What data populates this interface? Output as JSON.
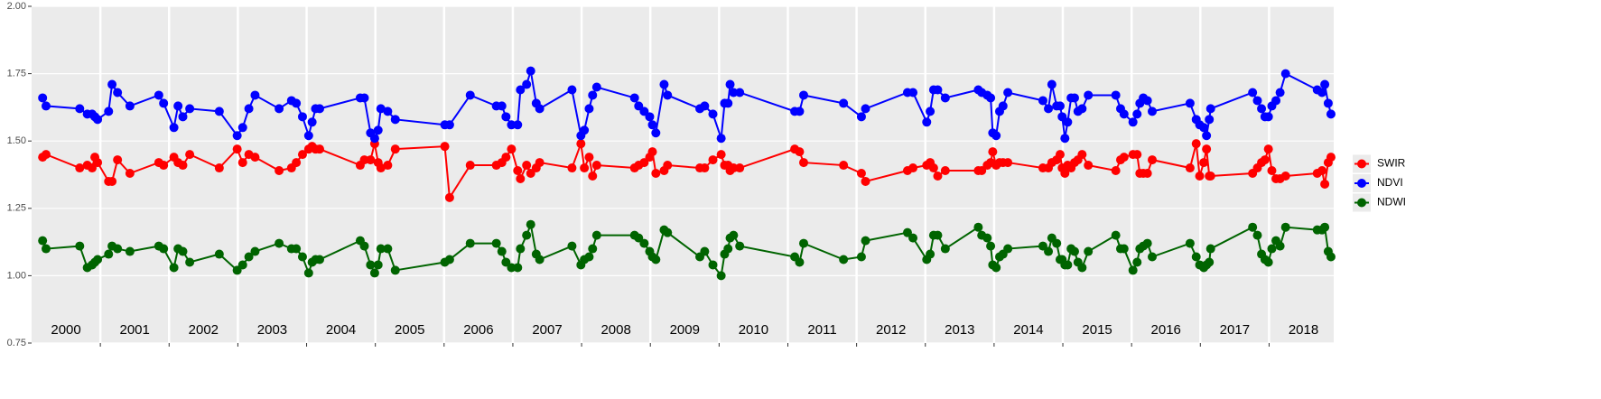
{
  "chart_data": {
    "type": "line",
    "x": [
      2000.16,
      2000.21,
      2000.7,
      2000.81,
      2000.88,
      2000.92,
      2000.96,
      2001.12,
      2001.17,
      2001.25,
      2001.43,
      2001.85,
      2001.92,
      2002.07,
      2002.13,
      2002.2,
      2002.3,
      2002.73,
      2002.99,
      2003.07,
      2003.16,
      2003.25,
      2003.6,
      2003.78,
      2003.85,
      2003.94,
      2004.03,
      2004.08,
      2004.13,
      2004.19,
      2004.78,
      2004.84,
      2004.93,
      2004.99,
      2005.04,
      2005.08,
      2005.18,
      2005.29,
      2006.01,
      2006.08,
      2006.38,
      2006.76,
      2006.84,
      2006.9,
      2006.98,
      2007.07,
      2007.11,
      2007.2,
      2007.26,
      2007.34,
      2007.39,
      2007.86,
      2007.99,
      2008.04,
      2008.11,
      2008.16,
      2008.22,
      2008.77,
      2008.83,
      2008.91,
      2008.99,
      2009.03,
      2009.08,
      2009.2,
      2009.25,
      2009.72,
      2009.79,
      2009.91,
      2010.03,
      2010.08,
      2010.13,
      2010.16,
      2010.21,
      2010.3,
      2011.1,
      2011.17,
      2011.23,
      2011.81,
      2012.07,
      2012.13,
      2012.74,
      2012.82,
      2013.02,
      2013.07,
      2013.12,
      2013.18,
      2013.29,
      2013.77,
      2013.82,
      2013.9,
      2013.95,
      2013.98,
      2014.03,
      2014.08,
      2014.13,
      2014.2,
      2014.71,
      2014.79,
      2014.84,
      2014.91,
      2014.96,
      2014.99,
      2015.03,
      2015.07,
      2015.12,
      2015.17,
      2015.22,
      2015.28,
      2015.37,
      2015.77,
      2015.84,
      2015.89,
      2016.02,
      2016.08,
      2016.12,
      2016.17,
      2016.23,
      2016.3,
      2016.85,
      2016.94,
      2016.99,
      2017.05,
      2017.09,
      2017.13,
      2017.15,
      2017.76,
      2017.83,
      2017.89,
      2017.94,
      2017.99,
      2018.04,
      2018.1,
      2018.16,
      2018.24,
      2018.7,
      2018.77,
      2018.81,
      2018.86,
      2018.9
    ],
    "series": [
      {
        "name": "SWIR",
        "color": "#ff0000",
        "values": [
          1.44,
          1.45,
          1.4,
          1.41,
          1.4,
          1.44,
          1.42,
          1.35,
          1.35,
          1.43,
          1.38,
          1.42,
          1.41,
          1.44,
          1.42,
          1.41,
          1.45,
          1.4,
          1.47,
          1.42,
          1.45,
          1.44,
          1.39,
          1.4,
          1.42,
          1.45,
          1.47,
          1.48,
          1.47,
          1.47,
          1.41,
          1.43,
          1.43,
          1.49,
          1.42,
          1.4,
          1.41,
          1.47,
          1.48,
          1.29,
          1.41,
          1.41,
          1.42,
          1.44,
          1.47,
          1.39,
          1.36,
          1.41,
          1.38,
          1.4,
          1.42,
          1.4,
          1.49,
          1.4,
          1.44,
          1.37,
          1.41,
          1.4,
          1.41,
          1.42,
          1.44,
          1.46,
          1.38,
          1.39,
          1.41,
          1.4,
          1.4,
          1.43,
          1.45,
          1.41,
          1.41,
          1.39,
          1.4,
          1.4,
          1.47,
          1.46,
          1.42,
          1.41,
          1.38,
          1.35,
          1.39,
          1.4,
          1.41,
          1.42,
          1.4,
          1.37,
          1.39,
          1.39,
          1.39,
          1.41,
          1.42,
          1.46,
          1.41,
          1.42,
          1.42,
          1.42,
          1.4,
          1.4,
          1.42,
          1.43,
          1.45,
          1.4,
          1.38,
          1.41,
          1.4,
          1.42,
          1.43,
          1.45,
          1.41,
          1.39,
          1.43,
          1.44,
          1.45,
          1.45,
          1.38,
          1.38,
          1.38,
          1.43,
          1.4,
          1.49,
          1.37,
          1.42,
          1.47,
          1.37,
          1.37,
          1.38,
          1.4,
          1.42,
          1.43,
          1.47,
          1.39,
          1.36,
          1.36,
          1.37,
          1.38,
          1.39,
          1.34,
          1.42,
          1.44
        ]
      },
      {
        "name": "NDVI",
        "color": "#0000ff",
        "values": [
          1.66,
          1.63,
          1.62,
          1.6,
          1.6,
          1.59,
          1.58,
          1.61,
          1.71,
          1.68,
          1.63,
          1.67,
          1.64,
          1.55,
          1.63,
          1.59,
          1.62,
          1.61,
          1.52,
          1.55,
          1.62,
          1.67,
          1.62,
          1.65,
          1.64,
          1.59,
          1.52,
          1.57,
          1.62,
          1.62,
          1.66,
          1.66,
          1.53,
          1.51,
          1.54,
          1.62,
          1.61,
          1.58,
          1.56,
          1.56,
          1.67,
          1.63,
          1.63,
          1.59,
          1.56,
          1.56,
          1.69,
          1.71,
          1.76,
          1.64,
          1.62,
          1.69,
          1.52,
          1.54,
          1.62,
          1.67,
          1.7,
          1.66,
          1.63,
          1.61,
          1.59,
          1.56,
          1.53,
          1.71,
          1.67,
          1.62,
          1.63,
          1.6,
          1.51,
          1.64,
          1.64,
          1.71,
          1.68,
          1.68,
          1.61,
          1.61,
          1.67,
          1.64,
          1.59,
          1.62,
          1.68,
          1.68,
          1.57,
          1.61,
          1.69,
          1.69,
          1.66,
          1.69,
          1.68,
          1.67,
          1.66,
          1.53,
          1.52,
          1.61,
          1.63,
          1.68,
          1.65,
          1.62,
          1.71,
          1.63,
          1.63,
          1.59,
          1.51,
          1.57,
          1.66,
          1.66,
          1.61,
          1.62,
          1.67,
          1.67,
          1.62,
          1.6,
          1.57,
          1.6,
          1.64,
          1.66,
          1.65,
          1.61,
          1.64,
          1.58,
          1.56,
          1.55,
          1.52,
          1.58,
          1.62,
          1.68,
          1.65,
          1.62,
          1.59,
          1.59,
          1.63,
          1.65,
          1.68,
          1.75,
          1.69,
          1.68,
          1.71,
          1.64,
          1.6
        ]
      },
      {
        "name": "NDWI",
        "color": "#006400",
        "values": [
          1.13,
          1.1,
          1.11,
          1.03,
          1.04,
          1.05,
          1.06,
          1.08,
          1.11,
          1.1,
          1.09,
          1.11,
          1.1,
          1.03,
          1.1,
          1.09,
          1.05,
          1.08,
          1.02,
          1.04,
          1.07,
          1.09,
          1.12,
          1.1,
          1.1,
          1.07,
          1.01,
          1.05,
          1.06,
          1.06,
          1.13,
          1.11,
          1.04,
          1.01,
          1.04,
          1.1,
          1.1,
          1.02,
          1.05,
          1.06,
          1.12,
          1.12,
          1.09,
          1.05,
          1.03,
          1.03,
          1.1,
          1.15,
          1.19,
          1.08,
          1.06,
          1.11,
          1.04,
          1.06,
          1.07,
          1.1,
          1.15,
          1.15,
          1.14,
          1.12,
          1.09,
          1.07,
          1.06,
          1.17,
          1.16,
          1.07,
          1.09,
          1.04,
          1.0,
          1.08,
          1.1,
          1.14,
          1.15,
          1.11,
          1.07,
          1.05,
          1.12,
          1.06,
          1.07,
          1.13,
          1.16,
          1.14,
          1.06,
          1.08,
          1.15,
          1.15,
          1.1,
          1.18,
          1.15,
          1.14,
          1.11,
          1.04,
          1.03,
          1.07,
          1.08,
          1.1,
          1.11,
          1.09,
          1.14,
          1.12,
          1.06,
          1.06,
          1.04,
          1.04,
          1.1,
          1.09,
          1.05,
          1.03,
          1.09,
          1.15,
          1.1,
          1.1,
          1.02,
          1.05,
          1.1,
          1.11,
          1.12,
          1.07,
          1.12,
          1.07,
          1.04,
          1.03,
          1.04,
          1.05,
          1.1,
          1.18,
          1.15,
          1.08,
          1.06,
          1.05,
          1.1,
          1.13,
          1.11,
          1.18,
          1.17,
          1.17,
          1.18,
          1.09,
          1.07
        ]
      }
    ],
    "xlim": [
      2000,
      2018.94
    ],
    "ylim": [
      0.75,
      2.0
    ],
    "yticks": [
      0.75,
      {
        "value": 1.0,
        "label": "1.00"
      },
      1.25,
      {
        "value": 1.5,
        "label": "1.50"
      },
      1.75,
      {
        "value": 2.0,
        "label": "2.00"
      }
    ],
    "xticks": [
      {
        "value": 2000.5,
        "label": "2000"
      },
      {
        "value": 2001.5,
        "label": "2001"
      },
      {
        "value": 2002.5,
        "label": "2002"
      },
      {
        "value": 2003.5,
        "label": "2003"
      },
      {
        "value": 2004.5,
        "label": "2004"
      },
      {
        "value": 2005.5,
        "label": "2005"
      },
      {
        "value": 2006.5,
        "label": "2006"
      },
      {
        "value": 2007.5,
        "label": "2007"
      },
      {
        "value": 2008.5,
        "label": "2008"
      },
      {
        "value": 2009.5,
        "label": "2009"
      },
      {
        "value": 2010.5,
        "label": "2010"
      },
      {
        "value": 2011.5,
        "label": "2011"
      },
      {
        "value": 2012.5,
        "label": "2012"
      },
      {
        "value": 2013.5,
        "label": "2013"
      },
      {
        "value": 2014.5,
        "label": "2014"
      },
      {
        "value": 2015.5,
        "label": "2015"
      },
      {
        "value": 2016.5,
        "label": "2016"
      },
      {
        "value": 2017.5,
        "label": "2017"
      },
      {
        "value": 2018.5,
        "label": "2018"
      }
    ],
    "year_separators": [
      2001,
      2002,
      2003,
      2004,
      2005,
      2006,
      2007,
      2008,
      2009,
      2010,
      2011,
      2012,
      2013,
      2014,
      2015,
      2016,
      2017,
      2018
    ],
    "grid": true,
    "legend": "right"
  }
}
